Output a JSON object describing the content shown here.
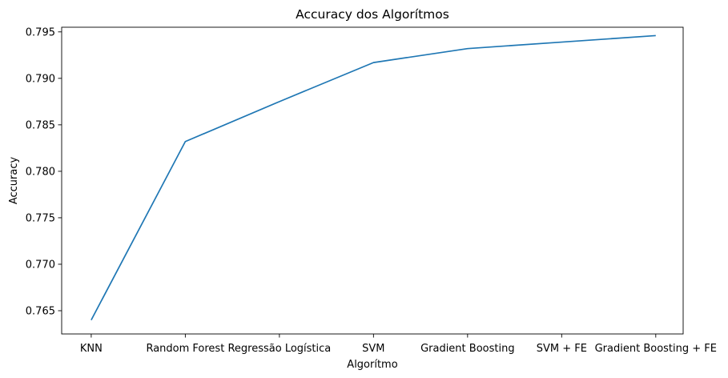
{
  "chart_data": {
    "type": "line",
    "title": "Accuracy dos Algorítmos",
    "xlabel": "Algorítmo",
    "ylabel": "Accuracy",
    "categories": [
      "KNN",
      "Random Forest",
      "Regressão Logística",
      "SVM",
      "Gradient Boosting",
      "SVM + FE",
      "Gradient Boosting + FE"
    ],
    "series": [
      {
        "values": [
          0.764,
          0.7832,
          0.7875,
          0.7917,
          0.7932,
          0.7939,
          0.7946
        ],
        "color": "#1f77b4"
      }
    ],
    "ylim": [
      0.7625,
      0.7955
    ],
    "yticks": [
      0.765,
      0.77,
      0.775,
      0.78,
      0.785,
      0.79,
      0.795
    ],
    "ytick_labels": [
      "0.765",
      "0.770",
      "0.775",
      "0.780",
      "0.785",
      "0.790",
      "0.795"
    ],
    "grid": false,
    "legend": false
  }
}
